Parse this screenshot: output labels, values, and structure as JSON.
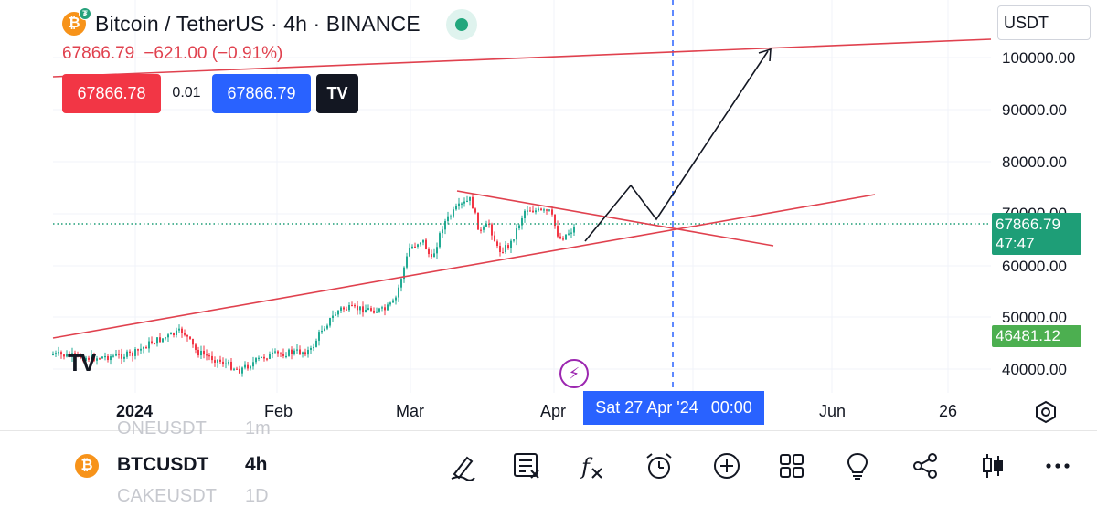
{
  "header": {
    "title": "Bitcoin / TetherUS · 4h · BINANCE",
    "coin_glyph": "₿",
    "quote_glyph": "₮",
    "last_price": "67866.79",
    "change": "−621.00 (−0.91%)"
  },
  "trade": {
    "sell_price": "67866.78",
    "spread": "0.01",
    "buy_price": "67866.79",
    "broker_badge": "TV"
  },
  "currency_select": {
    "value": "USDT"
  },
  "price_axis": {
    "labels": [
      "100000.00",
      "90000.00",
      "80000.00",
      "70000.00",
      "60000.00",
      "50000.00",
      "40000.00"
    ],
    "last_price_tag": {
      "price": "67866.79",
      "countdown": "47:47"
    },
    "secondary_tag": "46481.12"
  },
  "time_axis": {
    "labels": [
      {
        "text": "2024",
        "bold": true
      },
      {
        "text": "Feb",
        "bold": false
      },
      {
        "text": "Mar",
        "bold": false
      },
      {
        "text": "Apr",
        "bold": false
      },
      {
        "text": "Jun",
        "bold": false
      },
      {
        "text": "26",
        "bold": false
      }
    ],
    "crosshair_date": "Sat 27 Apr '24",
    "crosshair_time": "00:00"
  },
  "watermark": {
    "logo": "TV"
  },
  "lightning_glyph": "⚡",
  "bottom_bar": {
    "ghost_top_symbol": "ONEUSDT",
    "ghost_top_tf": "1m",
    "ghost_bottom_symbol": "CAKEUSDT",
    "ghost_bottom_tf": "1D",
    "symbol": "BTCUSDT",
    "timeframe": "4h",
    "tools": [
      {
        "name": "drawing-tool-icon"
      },
      {
        "name": "text-note-icon"
      },
      {
        "name": "indicators-icon"
      },
      {
        "name": "alarm-icon"
      },
      {
        "name": "add-icon"
      },
      {
        "name": "layout-grid-icon"
      },
      {
        "name": "lightbulb-icon"
      },
      {
        "name": "share-icon"
      },
      {
        "name": "candle-type-icon"
      },
      {
        "name": "more-icon"
      }
    ]
  },
  "colors": {
    "up": "#22ab94",
    "down": "#f23645",
    "trendline": "#e0414e",
    "crosshair": "#2962ff",
    "last_price_line": "#1e9e77"
  }
}
